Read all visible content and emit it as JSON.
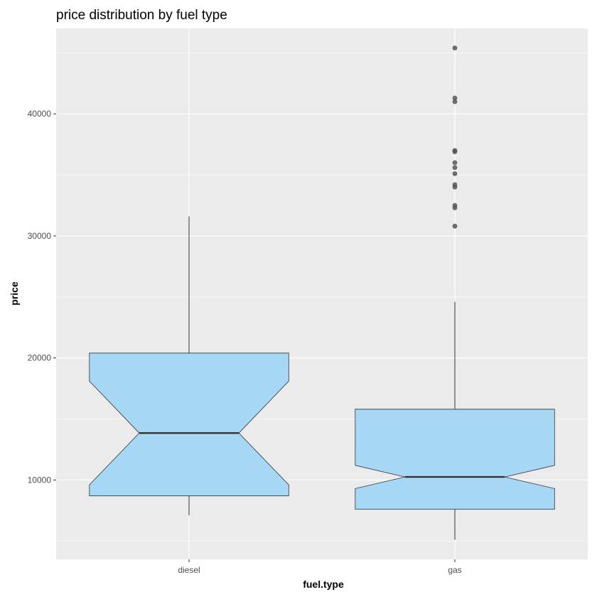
{
  "chart_data": {
    "type": "boxplot",
    "title": "price distribution by fuel type",
    "xlabel": "fuel.type",
    "ylabel": "price",
    "ylim": [
      3500,
      47000
    ],
    "yticks": [
      10000,
      20000,
      30000,
      40000
    ],
    "ytick_labels": [
      "10000",
      "20000",
      "30000",
      "40000"
    ],
    "notched": true,
    "grid": true,
    "categories": [
      "diesel",
      "gas"
    ],
    "boxes": [
      {
        "category": "diesel",
        "whisker_low": 7100,
        "q1": 8700,
        "median": 13850,
        "q3": 20400,
        "whisker_high": 31600,
        "notch_low": 9600,
        "notch_high": 18100,
        "outliers": []
      },
      {
        "category": "gas",
        "whisker_low": 5100,
        "q1": 7600,
        "median": 10250,
        "q3": 15800,
        "whisker_high": 24600,
        "notch_low": 9300,
        "notch_high": 11200,
        "outliers": [
          30800,
          32300,
          32500,
          34000,
          34200,
          35100,
          35600,
          36000,
          36900,
          37000,
          41000,
          41300,
          45400
        ]
      }
    ],
    "colors": {
      "panel_background": "#ebebeb",
      "grid_line": "#ffffff",
      "box_fill": "#a6d8f5",
      "box_border": "#333333",
      "median_line": "#333333",
      "outlier": "#555555"
    }
  }
}
